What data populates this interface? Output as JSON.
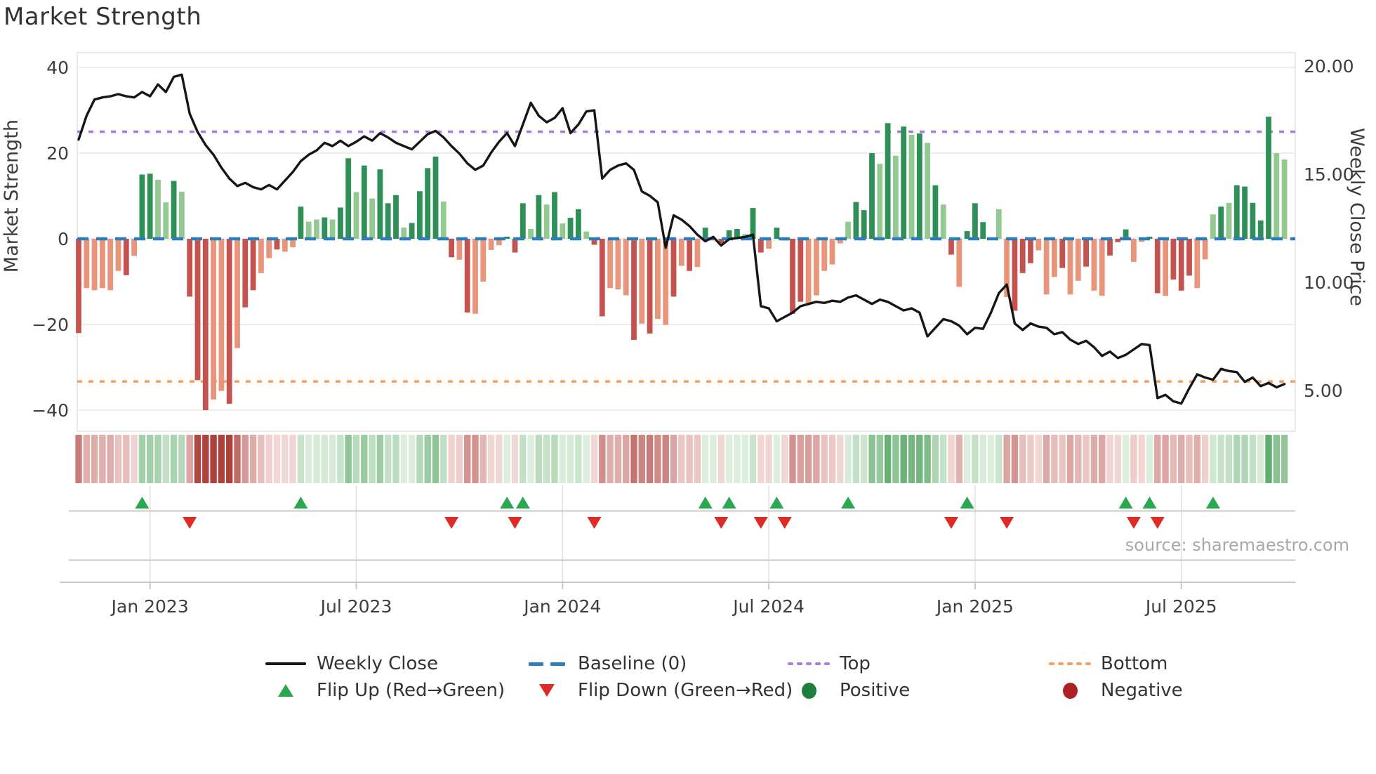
{
  "title": "Market Strength",
  "source": "source: sharemaestro.com",
  "axes": {
    "left": {
      "label": "Market Strength",
      "ticks": [
        "40",
        "20",
        "0",
        "−20",
        "−40"
      ],
      "tick_values": [
        40,
        20,
        0,
        -20,
        -40
      ]
    },
    "right": {
      "label": "Weekly Close Price",
      "ticks": [
        "20.00",
        "15.00",
        "10.00",
        "5.00"
      ],
      "tick_values": [
        20,
        15,
        10,
        5
      ]
    },
    "x": {
      "tick_labels": [
        "Jan 2023",
        "Jul 2023",
        "Jan 2024",
        "Jul 2024",
        "Jan 2025",
        "Jul 2025"
      ],
      "tick_weeks": [
        9,
        35,
        61,
        87,
        113,
        139
      ]
    }
  },
  "legend": {
    "items": [
      {
        "label": "Weekly Close",
        "swatch": "line-black"
      },
      {
        "label": "Baseline (0)",
        "swatch": "dash-blue"
      },
      {
        "label": "Top",
        "swatch": "dots-purple"
      },
      {
        "label": "Bottom",
        "swatch": "dots-orange"
      },
      {
        "label": "Flip Up (Red→Green)",
        "swatch": "triangle-up-green"
      },
      {
        "label": "Flip Down (Green→Red)",
        "swatch": "triangle-down-red"
      },
      {
        "label": "Positive",
        "swatch": "circle-green"
      },
      {
        "label": "Negative",
        "swatch": "circle-darkred"
      }
    ]
  },
  "colors": {
    "bar_pos_dark": "#2e8f57",
    "bar_pos_light": "#94ca92",
    "bar_neg_dark": "#c4534f",
    "bar_neg_light": "#e9957b",
    "baseline": "#2d7dbb",
    "top_line": "#ab7be0",
    "bottom_line": "#f2a05c",
    "price_line": "#161616",
    "flip_up": "#2aa84f",
    "flip_down": "#df2b26",
    "positive_dot": "#1d7f3c",
    "negative_dot": "#ad2024",
    "grid": "#ececec",
    "axis_line": "#c9c9c9",
    "tick_text": "#3d3d3d"
  },
  "chart_data": {
    "type": "bar+line",
    "title": "Market Strength",
    "x_unit": "weeks (Nov 2022 – Oct 2025)",
    "ylabel_left": "Market Strength",
    "ylim_left": [
      -45,
      43
    ],
    "ylabel_right": "Weekly Close Price",
    "ylim_right_ticks": [
      20,
      15,
      10,
      5
    ],
    "baseline": 0,
    "top_threshold": 25,
    "bottom_threshold": -33.3,
    "grid": true,
    "legend_position": "bottom",
    "bars": {
      "name": "Market Strength (weekly)",
      "values": [
        -22,
        -11.5,
        -12,
        -11.5,
        -12,
        -7.5,
        -8.5,
        -4,
        15,
        15.2,
        13.8,
        8.5,
        13.5,
        11,
        -13.5,
        -33,
        -40,
        -37.5,
        -35.5,
        -38.5,
        -25.5,
        -16,
        -12,
        -8,
        -4.5,
        -2.5,
        -3,
        -2,
        7.5,
        4,
        4.5,
        5,
        4.5,
        7.3,
        18.8,
        10.9,
        17.1,
        9.4,
        16.2,
        8.3,
        10.2,
        2.6,
        3.7,
        11.1,
        16.5,
        19.2,
        8.7,
        -4.3,
        -4.9,
        -17.2,
        -17.5,
        -10,
        -2.6,
        -1.5,
        0.5,
        -3.2,
        8.3,
        2.3,
        10.2,
        8,
        10.9,
        3.6,
        4.9,
        6.9,
        1.7,
        -1.4,
        -18.1,
        -11.5,
        -11.8,
        -13.2,
        -23.6,
        -19.8,
        -22.1,
        -18.7,
        -20.1,
        -13.5,
        -6.3,
        -7.5,
        -6.6,
        2.6,
        0.3,
        -1.1,
        2,
        2.3,
        1.1,
        7.2,
        -3.2,
        -2.3,
        2.6,
        -0.4,
        -17.5,
        -14.7,
        -15,
        -13.2,
        -7.5,
        -6,
        -1.1,
        4,
        8.6,
        6.7,
        20,
        17.5,
        27,
        19.4,
        26.2,
        24.3,
        24.6,
        22.4,
        12.5,
        8,
        -3.7,
        -11.2,
        1.8,
        8.3,
        3.9,
        0.3,
        6.9,
        -13.6,
        -16.8,
        -8,
        -5.7,
        -2.7,
        -13,
        -8.9,
        -6.8,
        -13,
        -9.8,
        -6.5,
        -12.1,
        -13.3,
        -3.9,
        -0.8,
        2.2,
        -5.4,
        -0.7,
        0.5,
        -12.7,
        -13.3,
        -9.5,
        -12.1,
        -8.6,
        -11.5,
        -4.8,
        5.7,
        7.5,
        8.4,
        12.5,
        12.2,
        8.4,
        4.3,
        28.5,
        20,
        18.5
      ],
      "shades": "dllllldlddlldldddlldlddlldlldlldlddldldddlddddldldlllldddldldlddlddllldldlldldldldddlddlddddlllllldddldldldldldlddddlldddllldlldlldddllddldddllldldddddlldll"
    },
    "line": {
      "name": "Weekly Close",
      "values": [
        16.6,
        17.7,
        18.45,
        18.55,
        18.6,
        18.7,
        18.6,
        18.55,
        18.8,
        18.6,
        19.15,
        18.8,
        19.5,
        19.6,
        17.8,
        16.95,
        16.35,
        15.9,
        15.3,
        14.8,
        14.45,
        14.6,
        14.4,
        14.3,
        14.5,
        14.3,
        14.7,
        15.1,
        15.6,
        15.9,
        16.1,
        16.45,
        16.3,
        16.55,
        16.3,
        16.5,
        16.75,
        16.55,
        16.9,
        16.7,
        16.45,
        16.3,
        16.15,
        16.5,
        16.85,
        17.0,
        16.7,
        16.3,
        15.95,
        15.5,
        15.2,
        15.4,
        16.0,
        16.5,
        16.9,
        16.3,
        17.3,
        18.3,
        17.7,
        17.4,
        17.6,
        18.05,
        16.9,
        17.3,
        17.9,
        17.95,
        14.8,
        15.2,
        15.4,
        15.5,
        15.2,
        14.2,
        14.0,
        13.7,
        11.6,
        13.1,
        12.9,
        12.6,
        12.2,
        11.9,
        12.1,
        11.7,
        12.0,
        12.05,
        12.1,
        12.2,
        8.9,
        8.8,
        8.2,
        8.4,
        8.6,
        8.9,
        9.0,
        9.1,
        9.05,
        9.15,
        9.1,
        9.3,
        9.4,
        9.2,
        9.0,
        9.2,
        9.1,
        8.9,
        8.7,
        8.8,
        8.6,
        7.5,
        7.9,
        8.3,
        8.2,
        8.0,
        7.6,
        7.9,
        7.85,
        8.6,
        9.5,
        9.9,
        8.1,
        7.8,
        8.1,
        7.95,
        7.9,
        7.6,
        7.7,
        7.35,
        7.15,
        7.3,
        7.0,
        6.6,
        6.8,
        6.5,
        6.65,
        6.9,
        7.15,
        7.1,
        4.65,
        4.8,
        4.5,
        4.4,
        5.1,
        5.75,
        5.6,
        5.5,
        6.0,
        5.9,
        5.85,
        5.4,
        5.6,
        5.2,
        5.35,
        5.15,
        5.3
      ]
    },
    "flip_up_weeks": [
      8,
      28,
      54,
      56,
      79,
      82,
      88,
      97,
      112,
      132,
      135,
      143
    ],
    "flip_down_weeks": [
      14,
      47,
      55,
      65,
      81,
      86,
      89,
      110,
      117,
      133,
      136
    ],
    "heatmap": "strip below chart encodes weekly bar sign/intensity (green positive, red negative)"
  }
}
